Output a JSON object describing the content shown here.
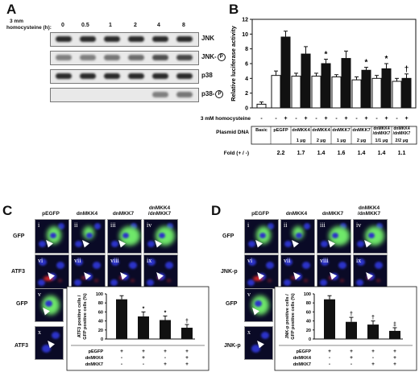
{
  "panelA": {
    "letter": "A",
    "condition_line1": "3 mm",
    "condition_line2": "homocysteine (h):",
    "timepoints": [
      "0",
      "0.5",
      "1",
      "2",
      "4",
      "8"
    ],
    "blots": [
      "JNK",
      "JNK-",
      "p38",
      "p38-"
    ],
    "phospho_symbol": "P"
  },
  "panelB": {
    "letter": "B",
    "rows": {
      "treatment_label": "3 mM homocysteine",
      "treatment_signs": [
        "-",
        "-",
        "+",
        "-",
        "+",
        "-",
        "+",
        "-",
        "+",
        "-",
        "+",
        "-",
        "+"
      ],
      "plasmid_label": "Plasmid DNA",
      "plasmid_names": [
        "Basic",
        "pEGFP",
        "dnMKK4",
        "dnMKK4",
        "dnMKK7",
        "dnMKK7",
        "dnMKK4\n/dnMKK7",
        "dnMKK4\n/dnMKK7"
      ],
      "plasmid_amounts": [
        "",
        "",
        "1 μg",
        "2 μg",
        "1 μg",
        "2 μg",
        "1/1 μg",
        "2/2 μg"
      ],
      "fold_label": "Fold (+ / -)",
      "fold_values": [
        "2.2",
        "1.7",
        "1.4",
        "1.6",
        "1.4",
        "1.4",
        "1.1"
      ],
      "significance": [
        "",
        "",
        "",
        "",
        "*",
        "",
        "",
        "",
        "*",
        "",
        "*",
        "",
        "†"
      ]
    },
    "chart_data": {
      "type": "bar",
      "ylabel": "Relative luciferase activity",
      "ylim": [
        0,
        12
      ],
      "yticks": [
        "0",
        "2",
        "4",
        "6",
        "8",
        "10",
        "12"
      ],
      "categories": [
        "Basic",
        "pEGFP -",
        "pEGFP +",
        "dnMKK4 1μg -",
        "dnMKK4 1μg +",
        "dnMKK4 2μg -",
        "dnMKK4 2μg +",
        "dnMKK7 1μg -",
        "dnMKK7 1μg +",
        "dnMKK7 2μg -",
        "dnMKK7 2μg +",
        "dnMKK4/dnMKK7 1/1μg -",
        "dnMKK4/dnMKK7 1/1μg +",
        "dnMKK4/dnMKK7 2/2μg -",
        "dnMKK4/dnMKK7 2/2μg +"
      ],
      "values": [
        0.5,
        4.4,
        9.6,
        4.3,
        7.3,
        4.3,
        6.0,
        4.2,
        6.7,
        3.8,
        5.1,
        4.0,
        5.3,
        3.6,
        4.0
      ],
      "errors": [
        0.3,
        0.6,
        0.8,
        0.4,
        1.0,
        0.4,
        0.6,
        0.3,
        1.0,
        0.4,
        0.4,
        0.4,
        0.7,
        0.4,
        0.6
      ],
      "fill": [
        "white",
        "white",
        "black",
        "white",
        "black",
        "white",
        "black",
        "white",
        "black",
        "white",
        "black",
        "white",
        "black",
        "white",
        "black"
      ]
    }
  },
  "panelC": {
    "letter": "C",
    "columns": [
      "pEGFP",
      "dnMKK4",
      "dnMKK7",
      "dnMKK4\n/dnMKK7"
    ],
    "row_labels": [
      "GFP",
      "ATF3"
    ],
    "top_indices": [
      "i",
      "ii",
      "iii",
      "iv"
    ],
    "bottom_indices": [
      "vi",
      "vii",
      "viii",
      "ix"
    ],
    "extra_indices": [
      "v",
      "x"
    ],
    "extra_labels": [
      "GFP",
      "ATF3"
    ],
    "chart_data": {
      "type": "bar",
      "ylabel": "ATF3 positive cells /\nGFP positive cells (%)",
      "ylim": [
        0,
        100
      ],
      "yticks": [
        "0",
        "20",
        "40",
        "60",
        "80",
        "100"
      ],
      "categories": [
        "pEGFP",
        "pEGFP+dnMKK4",
        "pEGFP+dnMKK7",
        "pEGFP+dnMKK4+dnMKK7"
      ],
      "values": [
        88,
        50,
        42,
        25
      ],
      "errors": [
        8,
        10,
        9,
        7
      ],
      "significance": [
        "",
        "*",
        "*",
        "†"
      ]
    },
    "table": {
      "row_labels": [
        "pEGFP",
        "dnMKK4",
        "dnMKK7"
      ],
      "signs": [
        [
          "+",
          "+",
          "+",
          "+"
        ],
        [
          "-",
          "+",
          "-",
          "+"
        ],
        [
          "-",
          "-",
          "+",
          "+"
        ]
      ]
    }
  },
  "panelD": {
    "letter": "D",
    "columns": [
      "pEGFP",
      "dnMKK4",
      "dnMKK7",
      "dnMKK4\n/dnMKK7"
    ],
    "row_labels": [
      "GFP",
      "JNK-p"
    ],
    "top_indices": [
      "i",
      "ii",
      "iii",
      "iv"
    ],
    "bottom_indices": [
      "vi",
      "vii",
      "viii",
      "ix"
    ],
    "extra_indices": [
      "v",
      "x"
    ],
    "extra_labels": [
      "GFP",
      "JNK-p"
    ],
    "chart_data": {
      "type": "bar",
      "ylabel": "JNK-p positive cells /\nGFP positive cells (%)",
      "ylim": [
        0,
        100
      ],
      "yticks": [
        "0",
        "20",
        "40",
        "60",
        "80",
        "100"
      ],
      "categories": [
        "pEGFP",
        "pEGFP+dnMKK4",
        "pEGFP+dnMKK7",
        "pEGFP+dnMKK4+dnMKK7"
      ],
      "values": [
        88,
        38,
        32,
        18
      ],
      "errors": [
        8,
        10,
        8,
        7
      ],
      "significance": [
        "",
        "†",
        "†",
        "‡"
      ]
    },
    "table": {
      "row_labels": [
        "pEGFP",
        "dnMKK4",
        "dnMKK7"
      ],
      "signs": [
        [
          "+",
          "+",
          "+",
          "+"
        ],
        [
          "-",
          "+",
          "-",
          "+"
        ],
        [
          "-",
          "-",
          "+",
          "+"
        ]
      ]
    }
  }
}
